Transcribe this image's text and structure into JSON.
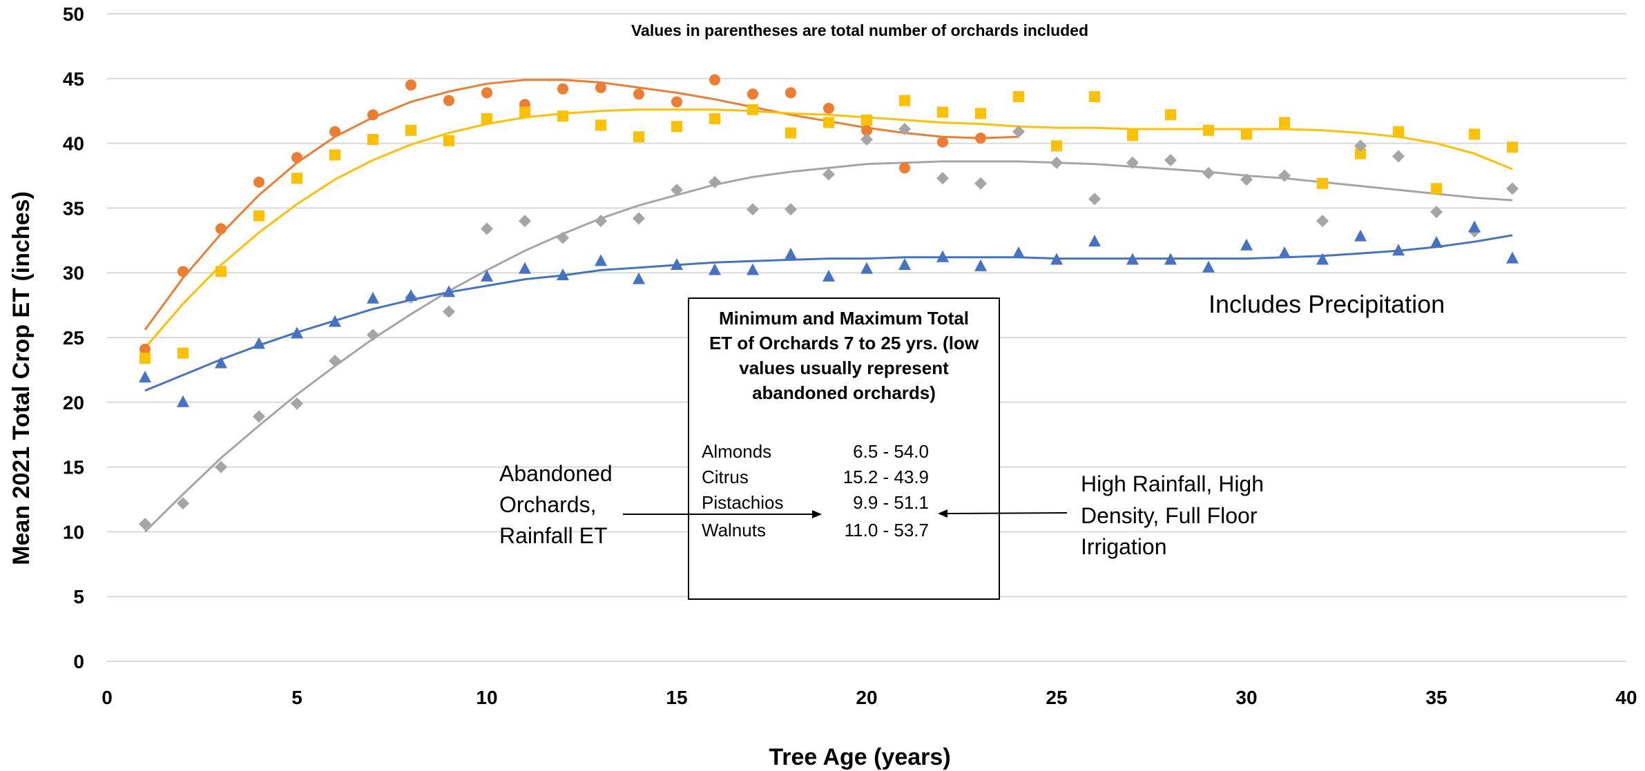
{
  "chart_data": {
    "type": "scatter",
    "title_partial": "",
    "subtitle": "Values in parentheses are total number of orchards included",
    "xlabel": "Tree Age (years)",
    "ylabel": "Mean 2021 Total Crop ET (inches)",
    "xlim": [
      0,
      40
    ],
    "ylim": [
      0,
      50
    ],
    "x_ticks": [
      0,
      5,
      10,
      15,
      20,
      25,
      30,
      35,
      40
    ],
    "y_ticks": [
      0,
      5,
      10,
      15,
      20,
      25,
      30,
      35,
      40,
      45,
      50
    ],
    "grid": true,
    "colors": {
      "orange": "#ED7D31",
      "gold": "#FFC000",
      "gray": "#A5A5A5",
      "blue": "#4472C4"
    },
    "series": [
      {
        "color": "#ED7D31",
        "marker": "circle",
        "x": [
          1,
          2,
          3,
          4,
          5,
          6,
          7,
          8,
          9,
          10,
          11,
          12,
          13,
          14,
          15,
          16,
          17,
          18,
          19,
          20,
          21,
          22,
          23
        ],
        "y": [
          24.1,
          30.1,
          33.4,
          37.0,
          38.9,
          40.9,
          42.2,
          44.5,
          43.3,
          43.9,
          43.0,
          44.2,
          44.3,
          43.8,
          43.2,
          44.9,
          43.8,
          43.9,
          42.7,
          41.0,
          38.1,
          40.1,
          40.4
        ],
        "trend": [
          [
            1,
            25.6
          ],
          [
            2,
            29.6
          ],
          [
            3,
            33.0
          ],
          [
            4,
            36.0
          ],
          [
            5,
            38.5
          ],
          [
            6,
            40.5
          ],
          [
            7,
            42.0
          ],
          [
            8,
            43.2
          ],
          [
            9,
            44.0
          ],
          [
            10,
            44.6
          ],
          [
            11,
            44.9
          ],
          [
            12,
            44.9
          ],
          [
            13,
            44.7
          ],
          [
            14,
            44.3
          ],
          [
            15,
            43.9
          ],
          [
            16,
            43.4
          ],
          [
            17,
            42.8
          ],
          [
            18,
            42.2
          ],
          [
            19,
            41.7
          ],
          [
            20,
            41.2
          ],
          [
            21,
            40.8
          ],
          [
            22,
            40.5
          ],
          [
            23,
            40.4
          ],
          [
            24,
            40.5
          ]
        ]
      },
      {
        "color": "#FFC000",
        "marker": "square",
        "x": [
          1,
          2,
          3,
          4,
          5,
          6,
          7,
          8,
          9,
          10,
          11,
          12,
          13,
          14,
          15,
          16,
          17,
          18,
          19,
          20,
          21,
          22,
          23,
          24,
          25,
          26,
          27,
          28,
          29,
          30,
          31,
          32,
          33,
          34,
          35,
          36,
          37
        ],
        "y": [
          23.4,
          23.8,
          30.1,
          34.4,
          37.3,
          39.1,
          40.3,
          41.0,
          40.2,
          41.9,
          42.4,
          42.1,
          41.4,
          40.5,
          41.3,
          41.9,
          42.6,
          40.8,
          41.6,
          41.8,
          43.3,
          42.4,
          42.3,
          43.6,
          39.8,
          43.6,
          40.6,
          42.2,
          41.0,
          40.7,
          41.6,
          36.9,
          39.2,
          40.9,
          36.5,
          40.7,
          39.7
        ],
        "trend": [
          [
            1,
            24.2
          ],
          [
            2,
            27.6
          ],
          [
            3,
            30.6
          ],
          [
            4,
            33.1
          ],
          [
            5,
            35.3
          ],
          [
            6,
            37.2
          ],
          [
            7,
            38.7
          ],
          [
            8,
            39.9
          ],
          [
            9,
            40.8
          ],
          [
            10,
            41.5
          ],
          [
            11,
            42.0
          ],
          [
            12,
            42.3
          ],
          [
            13,
            42.5
          ],
          [
            14,
            42.6
          ],
          [
            15,
            42.6
          ],
          [
            16,
            42.6
          ],
          [
            17,
            42.5
          ],
          [
            18,
            42.3
          ],
          [
            19,
            42.2
          ],
          [
            20,
            42.0
          ],
          [
            21,
            41.8
          ],
          [
            22,
            41.6
          ],
          [
            23,
            41.5
          ],
          [
            24,
            41.3
          ],
          [
            25,
            41.2
          ],
          [
            26,
            41.2
          ],
          [
            27,
            41.1
          ],
          [
            28,
            41.1
          ],
          [
            29,
            41.1
          ],
          [
            30,
            41.1
          ],
          [
            31,
            41.1
          ],
          [
            32,
            41.0
          ],
          [
            33,
            40.8
          ],
          [
            34,
            40.5
          ],
          [
            35,
            40.0
          ],
          [
            36,
            39.2
          ],
          [
            37,
            38.0
          ]
        ]
      },
      {
        "color": "#A5A5A5",
        "marker": "diamond",
        "x": [
          1,
          2,
          3,
          4,
          5,
          6,
          7,
          8,
          9,
          10,
          11,
          12,
          13,
          14,
          15,
          16,
          17,
          18,
          19,
          20,
          21,
          22,
          23,
          24,
          25,
          26,
          27,
          28,
          29,
          30,
          31,
          32,
          33,
          34,
          35,
          36,
          37
        ],
        "y": [
          10.6,
          12.2,
          15.0,
          18.9,
          19.9,
          23.2,
          25.2,
          28.1,
          27.0,
          33.4,
          34.0,
          32.7,
          34.0,
          34.2,
          36.4,
          37.0,
          34.9,
          34.9,
          37.6,
          40.3,
          41.1,
          37.3,
          36.9,
          40.9,
          38.5,
          35.7,
          38.5,
          38.7,
          37.7,
          37.2,
          37.5,
          34.0,
          39.8,
          39.0,
          34.7,
          33.2,
          36.5
        ],
        "trend": [
          [
            1,
            10.0
          ],
          [
            2,
            12.9
          ],
          [
            3,
            15.7
          ],
          [
            4,
            18.2
          ],
          [
            5,
            20.6
          ],
          [
            6,
            22.8
          ],
          [
            7,
            24.9
          ],
          [
            8,
            26.8
          ],
          [
            9,
            28.6
          ],
          [
            10,
            30.2
          ],
          [
            11,
            31.7
          ],
          [
            12,
            33.0
          ],
          [
            13,
            34.2
          ],
          [
            14,
            35.2
          ],
          [
            15,
            36.0
          ],
          [
            16,
            36.8
          ],
          [
            17,
            37.4
          ],
          [
            18,
            37.8
          ],
          [
            19,
            38.1
          ],
          [
            20,
            38.4
          ],
          [
            21,
            38.5
          ],
          [
            22,
            38.6
          ],
          [
            23,
            38.6
          ],
          [
            24,
            38.6
          ],
          [
            25,
            38.5
          ],
          [
            26,
            38.4
          ],
          [
            27,
            38.2
          ],
          [
            28,
            38.0
          ],
          [
            29,
            37.8
          ],
          [
            30,
            37.5
          ],
          [
            31,
            37.3
          ],
          [
            32,
            37.0
          ],
          [
            33,
            36.7
          ],
          [
            34,
            36.4
          ],
          [
            35,
            36.1
          ],
          [
            36,
            35.8
          ],
          [
            37,
            35.6
          ]
        ]
      },
      {
        "color": "#4472C4",
        "marker": "triangle",
        "x": [
          1,
          2,
          3,
          4,
          5,
          6,
          7,
          8,
          9,
          10,
          11,
          12,
          13,
          14,
          15,
          16,
          17,
          18,
          19,
          20,
          21,
          22,
          23,
          24,
          25,
          26,
          27,
          28,
          29,
          30,
          31,
          32,
          33,
          34,
          35,
          36,
          37
        ],
        "y": [
          21.9,
          20.0,
          23.0,
          24.5,
          25.3,
          26.2,
          28.0,
          28.2,
          28.5,
          29.7,
          30.3,
          29.8,
          30.9,
          29.5,
          30.6,
          30.2,
          30.2,
          31.4,
          29.7,
          30.3,
          30.6,
          31.2,
          30.5,
          31.5,
          31.0,
          32.4,
          31.0,
          31.0,
          30.4,
          32.1,
          31.5,
          31.0,
          32.8,
          31.7,
          32.3,
          33.5,
          31.1
        ],
        "trend": [
          [
            1,
            20.9
          ],
          [
            2,
            22.1
          ],
          [
            3,
            23.3
          ],
          [
            4,
            24.4
          ],
          [
            5,
            25.4
          ],
          [
            6,
            26.3
          ],
          [
            7,
            27.2
          ],
          [
            8,
            27.9
          ],
          [
            9,
            28.5
          ],
          [
            10,
            29.0
          ],
          [
            11,
            29.5
          ],
          [
            12,
            29.8
          ],
          [
            13,
            30.2
          ],
          [
            14,
            30.4
          ],
          [
            15,
            30.6
          ],
          [
            16,
            30.8
          ],
          [
            17,
            30.9
          ],
          [
            18,
            31.0
          ],
          [
            19,
            31.1
          ],
          [
            20,
            31.1
          ],
          [
            21,
            31.2
          ],
          [
            22,
            31.2
          ],
          [
            23,
            31.2
          ],
          [
            24,
            31.2
          ],
          [
            25,
            31.1
          ],
          [
            26,
            31.1
          ],
          [
            27,
            31.1
          ],
          [
            28,
            31.1
          ],
          [
            29,
            31.1
          ],
          [
            30,
            31.1
          ],
          [
            31,
            31.2
          ],
          [
            32,
            31.3
          ],
          [
            33,
            31.5
          ],
          [
            34,
            31.7
          ],
          [
            35,
            32.0
          ],
          [
            36,
            32.4
          ],
          [
            37,
            32.9
          ]
        ]
      }
    ],
    "annotations": {
      "precip": "Includes Precipitation",
      "box_title": [
        "Minimum and Maximum Total",
        "ET of Orchards 7 to 25 yrs. (low",
        "values usually represent",
        "abandoned orchards)"
      ],
      "box_rows": [
        {
          "crop": "Almonds",
          "range": "6.5 - 54.0"
        },
        {
          "crop": "Citrus",
          "range": "15.2 - 43.9"
        },
        {
          "crop": "Pistachios",
          "range": "9.9 - 51.1"
        },
        {
          "crop": "Walnuts",
          "range": "11.0 - 53.7"
        }
      ],
      "left_note": [
        "Abandoned",
        "Orchards,",
        "Rainfall ET"
      ],
      "right_note": [
        "High Rainfall, High",
        "Density, Full Floor",
        "Irrigation"
      ]
    }
  }
}
